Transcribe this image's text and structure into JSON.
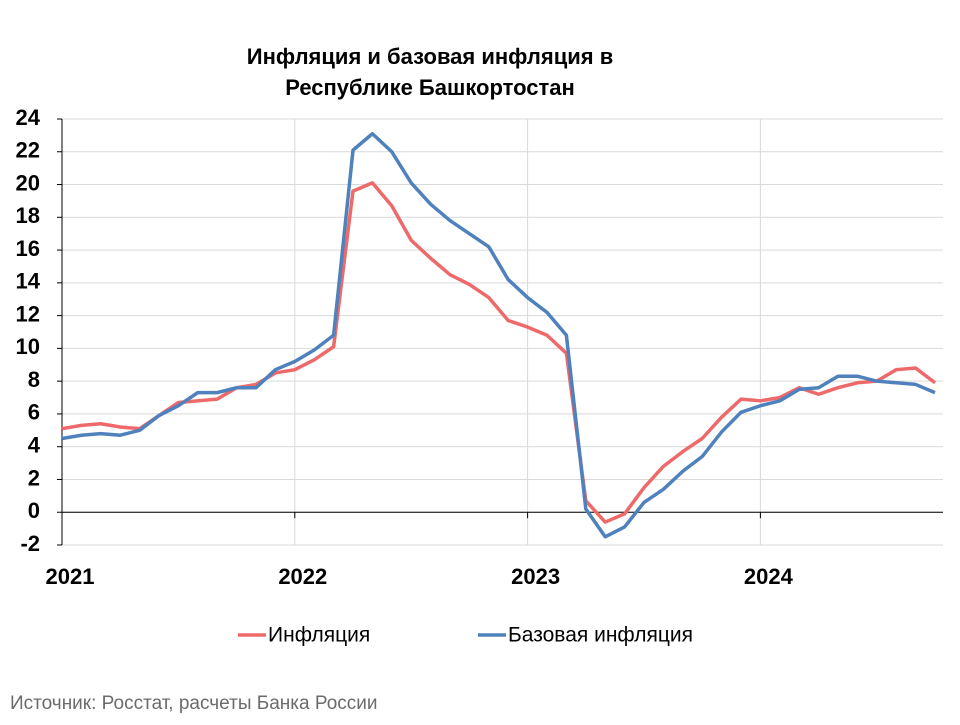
{
  "chart_data": {
    "type": "line",
    "title": "Инфляция и базовая инфляция в Республике Башкортостан",
    "source": "Источник: Росстат, расчеты Банка России",
    "x": [
      0,
      1,
      2,
      3,
      4,
      5,
      6,
      7,
      8,
      9,
      10,
      11,
      12,
      13,
      14,
      15,
      16,
      17,
      18,
      19,
      20,
      21,
      22,
      23,
      24,
      25,
      26,
      27,
      28,
      29,
      30,
      31,
      32,
      33,
      34,
      35,
      36,
      37,
      38,
      39,
      40,
      41,
      42,
      43,
      44,
      45
    ],
    "xlim": [
      0,
      45
    ],
    "xticks": [
      {
        "value": 0,
        "label": "2021"
      },
      {
        "value": 12,
        "label": "2022"
      },
      {
        "value": 24,
        "label": "2023"
      },
      {
        "value": 36,
        "label": "2024"
      }
    ],
    "ylim": [
      -2,
      24
    ],
    "yticks": [
      -2,
      0,
      2,
      4,
      6,
      8,
      10,
      12,
      14,
      16,
      18,
      20,
      22,
      24
    ],
    "grid": true,
    "legend": "bottom",
    "series": [
      {
        "name": "Инфляция",
        "color": "#ee6a6a",
        "values": [
          5.1,
          5.3,
          5.4,
          5.2,
          5.1,
          5.9,
          6.7,
          6.8,
          6.9,
          7.6,
          7.8,
          8.5,
          8.7,
          9.3,
          10.1,
          19.6,
          20.1,
          18.7,
          16.6,
          15.5,
          14.5,
          13.9,
          13.1,
          11.7,
          11.3,
          10.8,
          9.7,
          0.7,
          -0.6,
          -0.1,
          1.5,
          2.8,
          3.7,
          4.5,
          5.8,
          6.9,
          6.8,
          7.0,
          7.6,
          7.2,
          7.6,
          7.9,
          8.0,
          8.7,
          8.8,
          7.9
        ]
      },
      {
        "name": "Базовая инфляция",
        "color": "#4f81bd",
        "values": [
          4.5,
          4.7,
          4.8,
          4.7,
          5.0,
          5.9,
          6.5,
          7.3,
          7.3,
          7.6,
          7.6,
          8.7,
          9.2,
          9.9,
          10.8,
          22.1,
          23.1,
          22.0,
          20.1,
          18.8,
          17.8,
          17.0,
          16.2,
          14.2,
          13.1,
          12.2,
          10.8,
          0.2,
          -1.5,
          -0.9,
          0.6,
          1.4,
          2.5,
          3.4,
          4.9,
          6.1,
          6.5,
          6.8,
          7.5,
          7.6,
          8.3,
          8.3,
          8.0,
          7.9,
          7.8,
          7.3
        ]
      }
    ]
  }
}
